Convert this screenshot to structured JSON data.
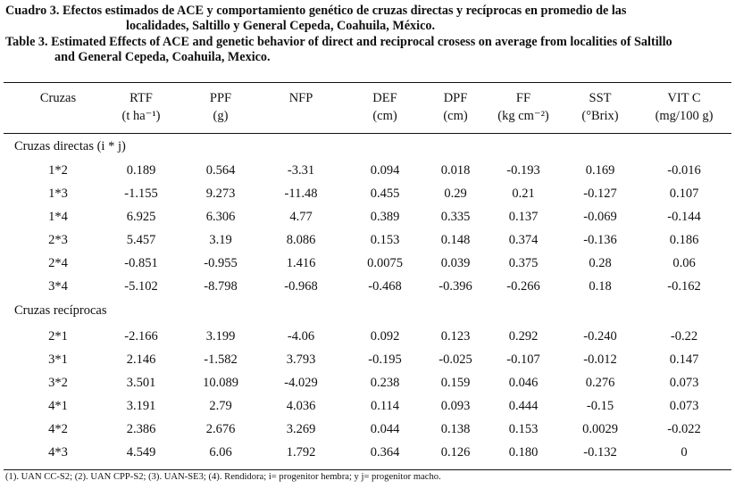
{
  "caption": {
    "es_line1": "Cuadro 3. Efectos estimados de ACE y comportamiento genético de cruzas directas y recíprocas en promedio de las",
    "es_line2": "localidades, Saltillo y General Cepeda, Coahuila, México.",
    "en_line1": "Table 3. Estimated Effects of ACE and genetic behavior of direct and reciprocal crosess on average from localities of Saltillo",
    "en_line2": "and General Cepeda, Coahuila, Mexico."
  },
  "table": {
    "headers": [
      {
        "l1": "Cruzas",
        "l2": ""
      },
      {
        "l1": "RTF",
        "l2": "(t ha⁻¹)"
      },
      {
        "l1": "PPF",
        "l2": "(g)"
      },
      {
        "l1": "NFP",
        "l2": ""
      },
      {
        "l1": "DEF",
        "l2": "(cm)"
      },
      {
        "l1": "DPF",
        "l2": "(cm)"
      },
      {
        "l1": "FF",
        "l2": "(kg cm⁻²)"
      },
      {
        "l1": "SST",
        "l2": "(°Brix)"
      },
      {
        "l1": "VIT C",
        "l2": "(mg/100 g)"
      }
    ],
    "groups": [
      {
        "label": "Cruzas directas (i * j)",
        "rows": [
          [
            "1*2",
            "0.189",
            "0.564",
            "-3.31",
            "0.094",
            "0.018",
            "-0.193",
            "0.169",
            "-0.016"
          ],
          [
            "1*3",
            "-1.155",
            "9.273",
            "-11.48",
            "0.455",
            "0.29",
            "0.21",
            "-0.127",
            "0.107"
          ],
          [
            "1*4",
            "6.925",
            "6.306",
            "4.77",
            "0.389",
            "0.335",
            "0.137",
            "-0.069",
            "-0.144"
          ],
          [
            "2*3",
            "5.457",
            "3.19",
            "8.086",
            "0.153",
            "0.148",
            "0.374",
            "-0.136",
            "0.186"
          ],
          [
            "2*4",
            "-0.851",
            "-0.955",
            "1.416",
            "0.0075",
            "0.039",
            "0.375",
            "0.28",
            "0.06"
          ],
          [
            "3*4",
            "-5.102",
            "-8.798",
            "-0.968",
            "-0.468",
            "-0.396",
            "-0.266",
            "0.18",
            "-0.162"
          ]
        ]
      },
      {
        "label": "Cruzas recíprocas",
        "rows": [
          [
            "2*1",
            "-2.166",
            "3.199",
            "-4.06",
            "0.092",
            "0.123",
            "0.292",
            "-0.240",
            "-0.22"
          ],
          [
            "3*1",
            "2.146",
            "-1.582",
            "3.793",
            "-0.195",
            "-0.025",
            "-0.107",
            "-0.012",
            "0.147"
          ],
          [
            "3*2",
            "3.501",
            "10.089",
            "-4.029",
            "0.238",
            "0.159",
            "0.046",
            "0.276",
            "0.073"
          ],
          [
            "4*1",
            "3.191",
            "2.79",
            "4.036",
            "0.114",
            "0.093",
            "0.444",
            "-0.15",
            "0.073"
          ],
          [
            "4*2",
            "2.386",
            "2.676",
            "3.269",
            "0.044",
            "0.138",
            "0.153",
            "0.0029",
            "-0.022"
          ],
          [
            "4*3",
            "4.549",
            "6.06",
            "1.792",
            "0.364",
            "0.126",
            "0.180",
            "-0.132",
            "0"
          ]
        ]
      }
    ]
  },
  "footnote": "(1). UAN CC-S2; (2). UAN CPP-S2; (3). UAN-SE3; (4). Rendidora; i= progenitor hembra; y j= progenitor macho."
}
